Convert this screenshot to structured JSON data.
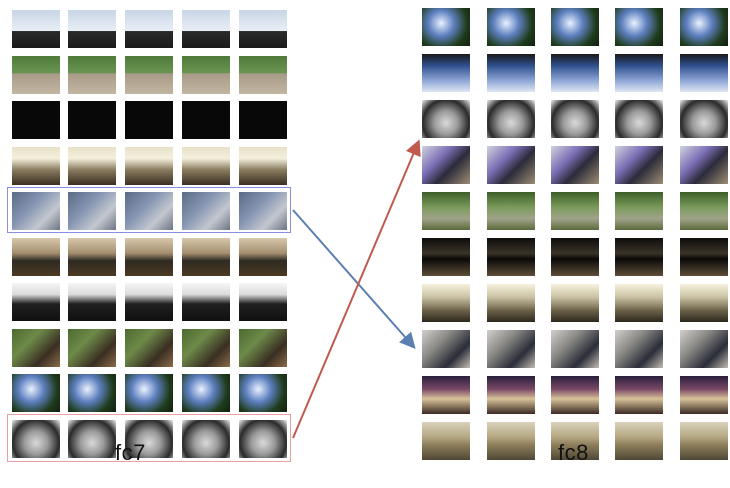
{
  "panels": {
    "left_label": "fc7",
    "right_label": "fc8"
  },
  "colors": {
    "blue_box": "#8a8ee0",
    "red_box": "#e9a0a0",
    "blue_arrow": "#5b7fb0",
    "red_arrow": "#c05a4e"
  },
  "left_rows": [
    {
      "scene": "sky",
      "count": 5
    },
    {
      "scene": "path",
      "count": 5
    },
    {
      "scene": "black",
      "count": 5
    },
    {
      "scene": "ceiling",
      "count": 5
    },
    {
      "scene": "fabric",
      "count": 5
    },
    {
      "scene": "desk",
      "count": 5
    },
    {
      "scene": "dash",
      "count": 5
    },
    {
      "scene": "woods",
      "count": 5
    },
    {
      "scene": "tree",
      "count": 5
    },
    {
      "scene": "wheel",
      "count": 5
    }
  ],
  "right_rows": [
    {
      "scene": "tree",
      "count": 5
    },
    {
      "scene": "blueSky",
      "count": 5
    },
    {
      "scene": "wheel",
      "count": 5
    },
    {
      "scene": "bike",
      "count": 5
    },
    {
      "scene": "grass",
      "count": 5
    },
    {
      "scene": "stairs",
      "count": 5
    },
    {
      "scene": "lamp",
      "count": 5
    },
    {
      "scene": "arm",
      "count": 5
    },
    {
      "scene": "store",
      "count": 5
    },
    {
      "scene": "keys",
      "count": 5
    }
  ]
}
